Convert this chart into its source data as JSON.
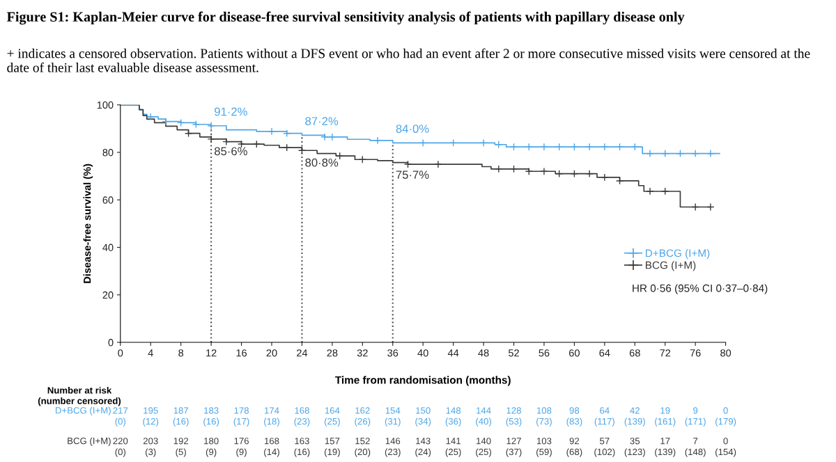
{
  "chart_data": {
    "type": "step",
    "title": "Figure S1: Kaplan-Meier curve for disease-free survival sensitivity analysis of patients with papillary disease only",
    "subtitle": "+ indicates a censored observation. Patients without a DFS event or who had an event after 2 or more consecutive missed visits were censored at the date of their last evaluable disease assessment.",
    "xlabel": "Time from randomisation (months)",
    "ylabel": "Disease-free survival (%)",
    "xlim": [
      0,
      80
    ],
    "xticks": [
      0,
      4,
      8,
      12,
      16,
      20,
      24,
      28,
      32,
      36,
      40,
      44,
      48,
      52,
      56,
      60,
      64,
      68,
      72,
      76,
      80
    ],
    "ylim": [
      0,
      100
    ],
    "yticks": [
      0,
      20,
      40,
      60,
      80,
      100
    ],
    "grid": false,
    "legend": "bottom right",
    "series": [
      {
        "name": "D+BCG (I+M)",
        "color": "#4da6e8",
        "x": [
          0,
          2.5,
          3,
          3.5,
          5,
          6,
          8,
          10,
          12,
          14,
          18,
          22,
          24,
          27,
          30,
          33,
          36,
          49.5,
          51,
          69,
          79.2
        ],
        "values": [
          100,
          98,
          96,
          95,
          94,
          93,
          92.5,
          91.8,
          91.2,
          89.5,
          88.8,
          88,
          87.2,
          86.5,
          85.5,
          85,
          84,
          83.3,
          82.3,
          79.5,
          79.5
        ]
      },
      {
        "name": "BCG (I+M)",
        "color": "#3a3a3a",
        "x": [
          0,
          2.5,
          3,
          3.5,
          4.5,
          6,
          7.5,
          9,
          10.5,
          12,
          14,
          16,
          19,
          21,
          24,
          26,
          28.5,
          31,
          34,
          36,
          38,
          47.8,
          49,
          54,
          57.5,
          63,
          66,
          68.5,
          69.2,
          74,
          78
        ],
        "values": [
          100,
          98,
          95.5,
          94,
          92.5,
          91,
          89.5,
          88,
          86.5,
          85.6,
          84.5,
          83.5,
          83,
          82,
          80.8,
          79.5,
          78.5,
          77,
          76.5,
          75.7,
          75,
          74,
          73,
          72,
          71,
          69.5,
          68,
          66,
          63.6,
          57,
          57
        ]
      },
      {
        "type": "scatter",
        "marker": "cross",
        "color": "#4da6e8",
        "x": [
          4,
          6,
          8,
          10,
          12,
          20,
          22,
          27,
          28,
          34,
          40,
          44,
          48,
          50,
          52,
          54,
          56,
          58,
          60,
          62,
          64,
          66,
          68,
          70,
          72,
          74,
          76,
          78
        ],
        "values": [
          95,
          93,
          92.5,
          91.8,
          91.2,
          88.8,
          88,
          86.5,
          86.5,
          85,
          84,
          84,
          84,
          83.3,
          82.3,
          82.3,
          82.3,
          82.3,
          82.3,
          82.3,
          82.3,
          82.3,
          82.3,
          79.5,
          79.5,
          79.5,
          79.5,
          79.5
        ]
      },
      {
        "type": "scatter",
        "marker": "cross",
        "color": "#3a3a3a",
        "x": [
          9,
          12,
          14,
          16,
          18,
          22,
          24,
          29,
          32,
          38,
          42,
          50,
          52,
          54,
          56,
          58,
          60,
          62,
          64,
          66,
          70,
          72,
          76,
          78
        ],
        "values": [
          88,
          85.6,
          84.5,
          83.5,
          83.5,
          82,
          80.8,
          78.5,
          77,
          75,
          75,
          73,
          73,
          72,
          72,
          71,
          71,
          71,
          69.5,
          68,
          63.6,
          63.6,
          57,
          57
        ]
      }
    ],
    "ref_lines": [
      {
        "axis": "x",
        "value": 12,
        "line_style": "dotted",
        "color": "#555555"
      },
      {
        "axis": "x",
        "value": 24,
        "line_style": "dotted",
        "color": "#555555"
      },
      {
        "axis": "x",
        "value": 36,
        "line_style": "dotted",
        "color": "#555555"
      }
    ],
    "annotations": [
      "HR 0·56 (95% CI 0·37–0·84)",
      {
        "text": "91·2%",
        "x": 12,
        "y": 91.2
      },
      {
        "text": "87·2%",
        "x": 24,
        "y": 87.2
      },
      {
        "text": "84·0%",
        "x": 36,
        "y": 84.0
      },
      {
        "text": "85·6%",
        "x": 12,
        "y": 85.6
      },
      {
        "text": "80·8%",
        "x": 24,
        "y": 80.8
      },
      {
        "text": "75·7%",
        "x": 36,
        "y": 75.7
      },
      "Number at risk\n(number censored)",
      "217\n(0)",
      "195\n(12)",
      "187\n(16)",
      "183\n(16)",
      "178\n(17)",
      "174\n(18)",
      "168\n(23)",
      "164\n(25)",
      "162\n(26)",
      "154\n(31)",
      "150\n(34)",
      "148\n(36)",
      "144\n(40)",
      "128\n(53)",
      "108\n(73)",
      "98\n(83)",
      "64\n(117)",
      "42\n(139)",
      "19\n(161)",
      "9\n(171)",
      "0\n(179)",
      "220\n(0)",
      "203\n(3)",
      "192\n(5)",
      "180\n(9)",
      "176\n(9)",
      "168\n(14)",
      "163\n(16)",
      "157\n(19)",
      "152\n(20)",
      "146\n(23)",
      "143\n(24)",
      "141\n(25)",
      "140\n(25)",
      "127\n(37)",
      "103\n(59)",
      "92\n(68)",
      "57\n(102)",
      "35\n(123)",
      "17\n(139)",
      "7\n(148)",
      "0\n(154)"
    ]
  }
}
